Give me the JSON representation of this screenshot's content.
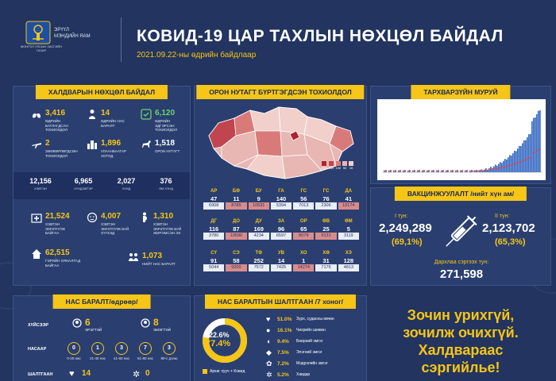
{
  "header": {
    "org_line1": "ЭРҮҮЛ",
    "org_line2": "МЭНДИЙН ЯАМ",
    "logo_caption": "МОНГОЛ УЛСЫН ЗАСГИЙН ГАЗАР",
    "title": "КОВИД-19 ЦАР ТАХЛЫН НӨХЦӨЛ БАЙДАЛ",
    "subtitle": "2021.09.22-ны өдрийн байдлаар"
  },
  "infection": {
    "title": "ХАЛДВАРЫН НӨХЦӨЛ БАЙДАЛ",
    "stats": [
      {
        "value": "3,416",
        "label": "ӨДРИЙН БАТЛАГДСАН ТОХИОЛДОЛ"
      },
      {
        "value": "14",
        "label": "ӨДРИЙН НАС БАРАЛТ"
      },
      {
        "value": "6,120",
        "label": "ӨДРИЙН ЭДГЭРСЭН ТОХИОЛДОЛ"
      },
      {
        "value": "2",
        "label": "ЗӨӨВӨРЛӨГДСӨН ТОХИОЛДОЛ"
      },
      {
        "value": "1,896",
        "label": "УЛААНБААТАР ХОТОД"
      },
      {
        "value": "1,518",
        "label": "ОРОН НУТАГТ"
      }
    ],
    "band": [
      {
        "value": "12,156",
        "label": "ХЭВТЭН"
      },
      {
        "value": "6,965",
        "label": "ХҮНДЭВТЭР"
      },
      {
        "value": "2,027",
        "label": "ХҮНД"
      },
      {
        "value": "376",
        "label": "ЯМ ХҮНД"
      }
    ],
    "stats2": [
      {
        "value": "21,524",
        "label": "ХЭВТЭН ЭМЧЛҮҮЛЖ БАЙГАА"
      },
      {
        "value": "4,007",
        "label": "ХЭВТЭН ЭМЧЛҮҮЛЖ БУЙ ХҮҮХЭД"
      },
      {
        "value": "1,310",
        "label": "ХЭВТЭН ЭМЧЛҮҮЛЖ БУЙ ЖИРЭМСЭН ЭХ"
      },
      {
        "value": "62,515",
        "label": "ГЭРИЙН ХЯНАЛТАД БАЙГАА"
      },
      {
        "value": "1,073",
        "label": "НИЙТ НАС БАРАЛТ"
      }
    ]
  },
  "regions": {
    "title": "ОРОН НУТАГТ БҮРТГЭГДСЭН ТОХИОЛДОЛ",
    "map_legend": [
      "400",
      "150",
      "100",
      "50",
      "10"
    ],
    "rows": [
      {
        "codes": [
          "АР",
          "БӨ",
          "БУ",
          "ГА",
          "ГС",
          "ГС",
          "ДА"
        ],
        "counts": [
          "47",
          "11",
          "9",
          "140",
          "56",
          "76",
          "41"
        ],
        "totals": [
          "6908",
          "8785",
          "10591",
          "5394",
          "7013",
          "2306",
          "10174"
        ]
      },
      {
        "codes": [
          "ДГ",
          "ДО",
          "ДУ",
          "ЗА",
          "ОР",
          "ӨВ",
          "ӨМ"
        ],
        "counts": [
          "116",
          "87",
          "169",
          "96",
          "65",
          "25",
          "5"
        ],
        "totals": [
          "3780",
          "10590",
          "4234",
          "6597",
          "8079",
          "9131",
          "3119"
        ]
      },
      {
        "codes": [
          "СҮ",
          "СЭ",
          "ТӨ",
          "УВ",
          "ХО",
          "ХӨ",
          "ХЭ"
        ],
        "counts": [
          "91",
          "58",
          "252",
          "14",
          "1",
          "31",
          "128"
        ],
        "totals": [
          "5044",
          "9200",
          "7572",
          "7425",
          "14274",
          "7176",
          "4813"
        ]
      }
    ]
  },
  "curve": {
    "title": "ТАРХВАРЗҮЙН МУРУЙ"
  },
  "vaccine": {
    "title": "ВАКЦИНЖУУЛАЛТ /нийт хүн ам/",
    "dose1_label": "I тун:",
    "dose1_value": "2,249,289",
    "dose1_pct": "(69,1%)",
    "dose2_label": "II тун:",
    "dose2_value": "2,123,702",
    "dose2_pct": "(65,3%)",
    "booster_label": "Дархлаа сэргээх тун:",
    "booster_value": "271,598"
  },
  "age_deaths": {
    "title": "НАС БАРАЛТ/өдрөөр/",
    "gender_label": "ХҮЙСЭЭР",
    "male_value": "6",
    "male_label": "ЭРЭГТЭЙ",
    "female_value": "8",
    "female_label": "ЭМЭГТЭЙ",
    "age_label": "НАСААР",
    "age_values": [
      "0",
      "1",
      "3",
      "7",
      "3"
    ],
    "age_groups": [
      "0-20 нас",
      "21-40 нас",
      "41-60 нас",
      "61-80 нас",
      "80-с дээш"
    ],
    "cause_label": "ШАЛТГААН",
    "cause_values": [
      "14",
      "0"
    ]
  },
  "causes": {
    "title": "НАС БАРАЛТЫН ШАЛТГААН /7 хоног/",
    "donut_pct_1": "22.6%",
    "donut_pct_2": "77.4%",
    "legend_1": "Архаг хууч + Ковид",
    "items": [
      {
        "pct": "51.0%",
        "label": "Зүрх, судасны өвчин"
      },
      {
        "pct": "16.1%",
        "label": "Чихрийн шижин"
      },
      {
        "pct": "9.4%",
        "label": "Бөөрний эмгэг"
      },
      {
        "pct": "7.5%",
        "label": "Элэгний эмгэг"
      },
      {
        "pct": "7.2%",
        "label": "Мэдрэлийн эмгэг"
      },
      {
        "pct": "5.2%",
        "label": "Хавдар"
      }
    ]
  },
  "slogan": {
    "line1": "Зочин урихгүй,",
    "line2": "зочилж очихгүй.",
    "line3": "Халдвараас",
    "line4": "сэргийлье!"
  },
  "colors": {
    "background": "#22345f",
    "accent": "#f5c518",
    "green": "#6fd36b",
    "map_red": "#c0454f"
  }
}
